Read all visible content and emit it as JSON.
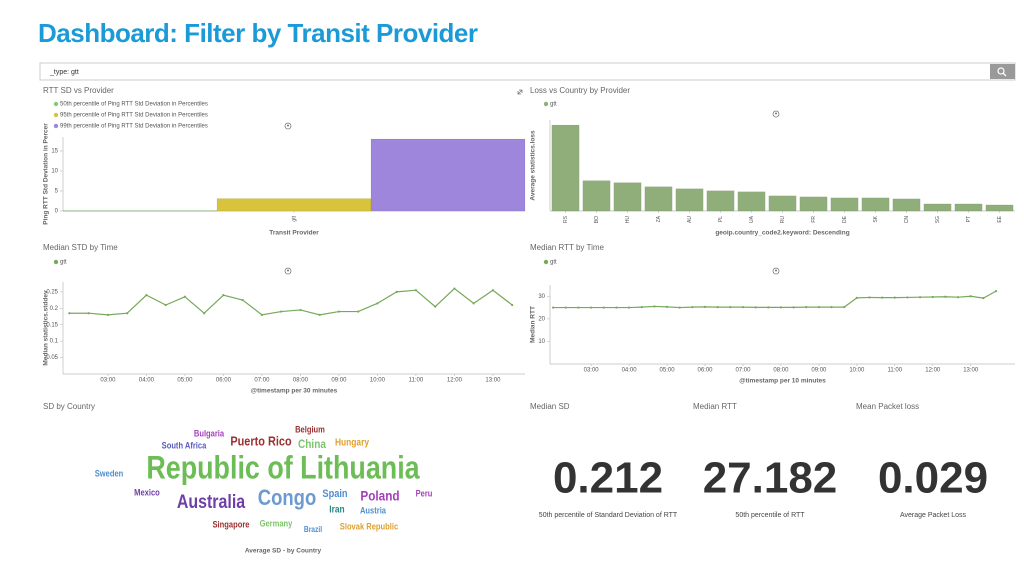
{
  "header": {
    "title": "Dashboard: Filter by Transit Provider"
  },
  "search": {
    "query": "_type: gtt"
  },
  "chart_data": [
    {
      "type": "bar",
      "title": "RTT SD vs Provider",
      "categories": [
        "gtt"
      ],
      "series": [
        {
          "name": "50th percentile of Ping RTT Std Deviation in Percentiles",
          "color": "#8cc96e",
          "values": [
            0.1
          ]
        },
        {
          "name": "95th percentile of Ping RTT Std Deviation in Percentiles",
          "color": "#d8c43c",
          "values": [
            3.1
          ]
        },
        {
          "name": "99th percentile of Ping RTT Std Deviation in Percentiles",
          "color": "#9d86dc",
          "values": [
            18
          ]
        }
      ],
      "ylabel": "Ping RTT Std Deviation in Percer",
      "xlabel": "Transit Provider",
      "ylim": [
        0,
        18.5
      ],
      "yticks": [
        0,
        5,
        10,
        15
      ]
    },
    {
      "type": "bar",
      "title": "Loss vs Country by Provider",
      "categories": [
        "RS",
        "BO",
        "HU",
        "ZA",
        "AU",
        "PL",
        "UA",
        "RU",
        "FR",
        "DE",
        "SK",
        "CN",
        "SG",
        "PT",
        "EE"
      ],
      "series": [
        {
          "name": "gtt",
          "color": "#8fae7a",
          "values": [
            8.5,
            3.0,
            2.8,
            2.4,
            2.2,
            2.0,
            1.9,
            1.5,
            1.4,
            1.3,
            1.3,
            1.2,
            0.7,
            0.7,
            0.6
          ]
        }
      ],
      "ylabel": "Average statistics.loss",
      "xlabel": "geoip.country_code2.keyword: Descending",
      "ylim": [
        0,
        9
      ]
    },
    {
      "type": "line",
      "title": "Median STD by Time",
      "x": [
        "02:00",
        "02:30",
        "03:00",
        "03:30",
        "04:00",
        "04:30",
        "05:00",
        "05:30",
        "06:00",
        "06:30",
        "07:00",
        "07:30",
        "08:00",
        "08:30",
        "09:00",
        "09:30",
        "10:00",
        "10:30",
        "11:00",
        "11:30",
        "12:00",
        "12:30",
        "13:00",
        "13:30"
      ],
      "series": [
        {
          "name": "gtt",
          "color": "#76a95a",
          "values": [
            0.185,
            0.185,
            0.18,
            0.185,
            0.24,
            0.21,
            0.235,
            0.185,
            0.24,
            0.225,
            0.18,
            0.19,
            0.195,
            0.18,
            0.19,
            0.19,
            0.215,
            0.25,
            0.255,
            0.205,
            0.26,
            0.215,
            0.255,
            0.21
          ]
        }
      ],
      "ylabel": "Median statistics.stddev",
      "xlabel": "@timestamp per 30 minutes",
      "xlim": [
        "01:50",
        "13:50"
      ],
      "xticks": [
        "03:00",
        "04:00",
        "05:00",
        "06:00",
        "07:00",
        "08:00",
        "09:00",
        "10:00",
        "11:00",
        "12:00",
        "13:00"
      ],
      "ylim": [
        0,
        0.28
      ],
      "yticks": [
        0.05,
        0.1,
        0.15,
        0.2,
        0.25
      ]
    },
    {
      "type": "line",
      "title": "Median RTT by Time",
      "x": [
        "02:00",
        "02:20",
        "02:40",
        "03:00",
        "03:20",
        "03:40",
        "04:00",
        "04:20",
        "04:40",
        "05:00",
        "05:20",
        "05:40",
        "06:00",
        "06:20",
        "06:40",
        "07:00",
        "07:20",
        "07:40",
        "08:00",
        "08:20",
        "08:40",
        "09:00",
        "09:20",
        "09:40",
        "10:00",
        "10:20",
        "10:40",
        "11:00",
        "11:20",
        "11:40",
        "12:00",
        "12:20",
        "12:40",
        "13:00",
        "13:20",
        "13:40"
      ],
      "series": [
        {
          "name": "gtt",
          "color": "#76a95a",
          "values": [
            25,
            25,
            25,
            25,
            25,
            25,
            25,
            25.2,
            25.5,
            25.3,
            25,
            25.2,
            25.3,
            25.2,
            25.2,
            25.2,
            25.1,
            25.1,
            25.1,
            25.1,
            25.2,
            25.2,
            25.2,
            25.2,
            29.3,
            29.5,
            29.4,
            29.4,
            29.5,
            29.6,
            29.7,
            29.8,
            29.6,
            30,
            29.2,
            32.3
          ]
        }
      ],
      "ylabel": "Median RTT",
      "xlabel": "@timestamp per 10 minutes",
      "xlim": [
        "01:55",
        "14:10"
      ],
      "xticks": [
        "03:00",
        "04:00",
        "05:00",
        "06:00",
        "07:00",
        "08:00",
        "09:00",
        "10:00",
        "11:00",
        "12:00",
        "13:00"
      ],
      "ylim": [
        0,
        35
      ],
      "yticks": [
        10,
        20,
        30
      ]
    },
    {
      "type": "wordcloud",
      "title": "SD by Country",
      "caption": "Average SD - by Country",
      "categories": [
        "Republic of Lithuania",
        "Australia",
        "Congo",
        "Puerto Rico",
        "Poland",
        "China",
        "Spain",
        "Hungary",
        "Belgium",
        "Bulgaria",
        "South Africa",
        "Sweden",
        "Mexico",
        "Iran",
        "Austria",
        "Germany",
        "Peru",
        "Singapore",
        "Brazil",
        "Slovak Republic"
      ],
      "values": [
        0.32,
        0.19,
        0.22,
        0.13,
        0.14,
        0.12,
        0.11,
        0.1,
        0.09,
        0.09,
        0.09,
        0.09,
        0.09,
        0.1,
        0.09,
        0.09,
        0.09,
        0.09,
        0.08,
        0.09
      ],
      "colors": [
        "#6dbd56",
        "#6f3fa8",
        "#6c9bd0",
        "#9b2f2f",
        "#a43fb8",
        "#7cc46b",
        "#4f8fd0",
        "#e0a030",
        "#9b2f2f",
        "#a43fb8",
        "#5a5ac0",
        "#4f8fd0",
        "#6f3fa8",
        "#2a8a8a",
        "#4f8fd0",
        "#7cc46b",
        "#a43fb8",
        "#9b2f2f",
        "#4f8fd0",
        "#e0a030"
      ]
    }
  ],
  "metrics": [
    {
      "title": "Median SD",
      "value": 0.212,
      "label": "50th percentile of Standard Deviation of RTT"
    },
    {
      "title": "Median RTT",
      "value": 27.182,
      "label": "50th percentile of RTT"
    },
    {
      "title": "Mean Packet loss",
      "value": 0.029,
      "label": "Average Packet Loss"
    }
  ]
}
